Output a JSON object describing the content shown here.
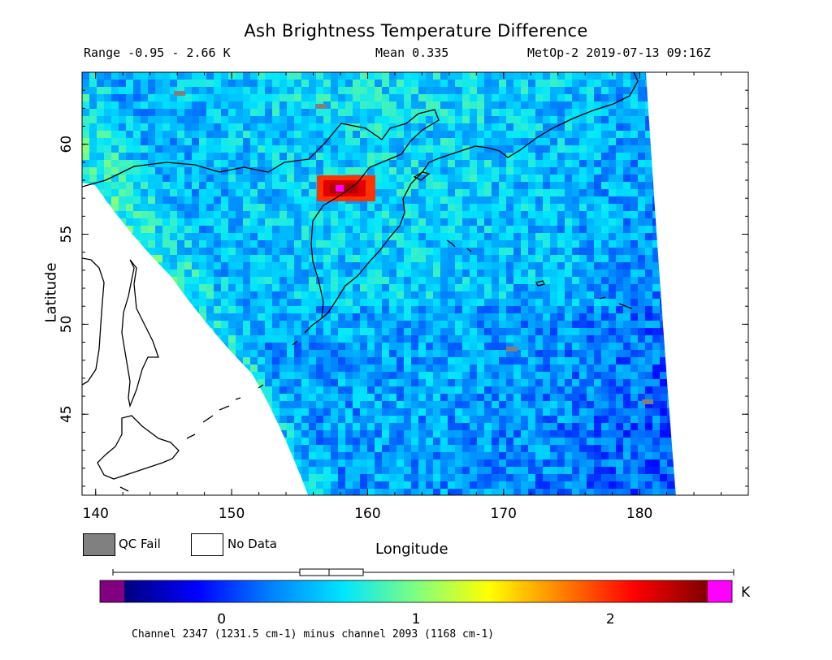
{
  "title": "Ash Brightness Temperature Difference",
  "range_text": "Range -0.95 - 2.66 K",
  "mean_text": "Mean 0.335",
  "satellite_text": "MetOp-2 2019-07-13 09:16Z",
  "x_axis": {
    "label": "Longitude",
    "ticks": [
      "140",
      "150",
      "160",
      "170",
      "180"
    ],
    "range": [
      139,
      188
    ]
  },
  "y_axis": {
    "label": "Latitude",
    "ticks": [
      "45",
      "50",
      "55",
      "60"
    ],
    "range": [
      40.5,
      64
    ]
  },
  "legend": {
    "qc_fail": "QC Fail",
    "no_data": "No Data",
    "qc_color": "#808080"
  },
  "colorbar": {
    "unit": "K",
    "ticks": [
      "0",
      "1",
      "2"
    ],
    "tick_values": [
      0,
      1,
      2
    ],
    "range": [
      -0.5,
      2.5
    ],
    "under_color": "#800080",
    "over_color": "#ff00ff",
    "colors": [
      "#00007f",
      "#0000ff",
      "#0080ff",
      "#00e5ff",
      "#7fff7f",
      "#ffff00",
      "#ff8000",
      "#ff0000",
      "#7f0000"
    ]
  },
  "channel_text": "Channel 2347 (1231.5 cm-1) minus channel 2093 (1168 cm-1)",
  "hotspot": {
    "lon": 157.8,
    "lat": 58.2,
    "value": 2.66,
    "color": "#ff00ff"
  }
}
